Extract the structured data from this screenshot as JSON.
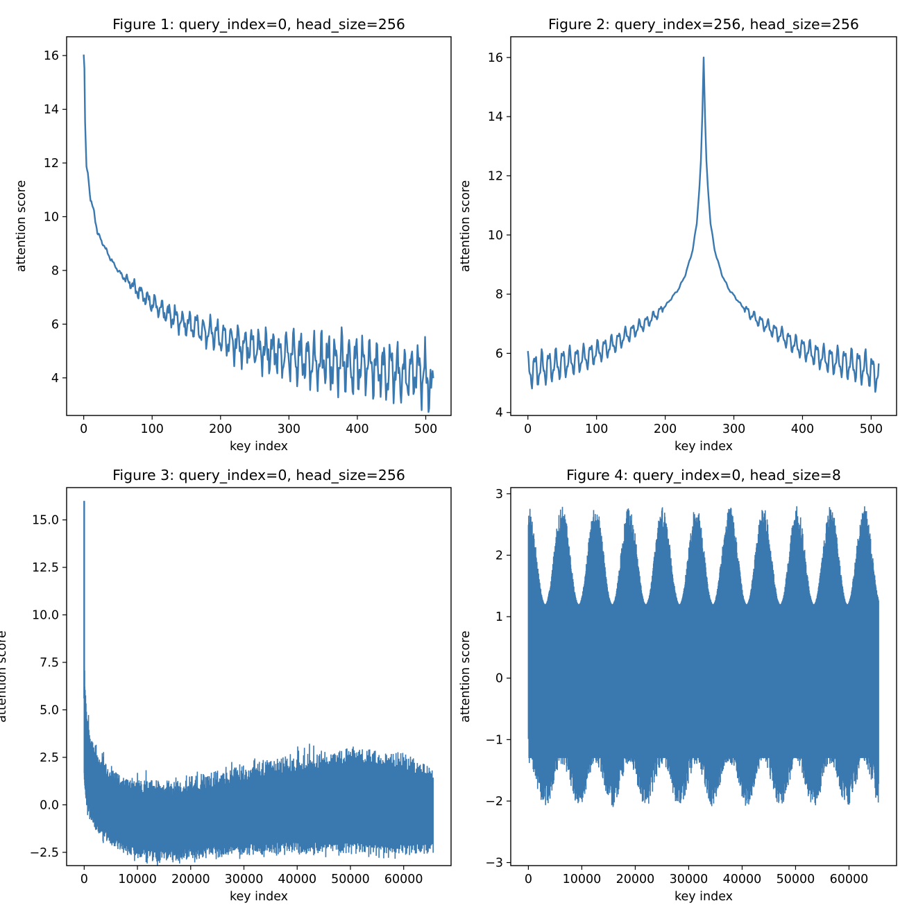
{
  "charts": [
    {
      "title": "Figure 1: query_index=0, head_size=256",
      "xlabel": "key index",
      "ylabel": "attention score",
      "xticks": [
        "0",
        "100",
        "200",
        "300",
        "400",
        "500"
      ],
      "yticks": [
        "4",
        "6",
        "8",
        "10",
        "12",
        "14",
        "16"
      ]
    },
    {
      "title": "Figure 2: query_index=256, head_size=256",
      "xlabel": "key index",
      "ylabel": "attention score",
      "xticks": [
        "0",
        "100",
        "200",
        "300",
        "400",
        "500"
      ],
      "yticks": [
        "4",
        "6",
        "8",
        "10",
        "12",
        "14",
        "16"
      ]
    },
    {
      "title": "Figure 3: query_index=0, head_size=256",
      "xlabel": "key index",
      "ylabel": "attention score",
      "xticks": [
        "0",
        "10000",
        "20000",
        "30000",
        "40000",
        "50000",
        "60000"
      ],
      "yticks": [
        "−2.5",
        "0.0",
        "2.5",
        "5.0",
        "7.5",
        "10.0",
        "12.5",
        "15.0"
      ]
    },
    {
      "title": "Figure 4: query_index=0, head_size=8",
      "xlabel": "key index",
      "ylabel": "attention score",
      "xticks": [
        "0",
        "10000",
        "20000",
        "30000",
        "40000",
        "50000",
        "60000"
      ],
      "yticks": [
        "−3",
        "−2",
        "−1",
        "0",
        "1",
        "2",
        "3"
      ]
    }
  ],
  "chart_data": [
    {
      "type": "line",
      "title": "Figure 1: query_index=0, head_size=256",
      "xlabel": "key index",
      "ylabel": "attention score",
      "xlim": [
        -25,
        537
      ],
      "ylim": [
        2.6,
        16.7
      ],
      "xticks": [
        0,
        100,
        200,
        300,
        400,
        500
      ],
      "yticks": [
        4,
        6,
        8,
        10,
        12,
        14,
        16
      ],
      "color": "#3a78b0",
      "series": [
        {
          "x": [
            0,
            1,
            2,
            4,
            6,
            10,
            15,
            20,
            30,
            40,
            50,
            60,
            70,
            80,
            90,
            100,
            110,
            120,
            130,
            140,
            150,
            160,
            170,
            180,
            190,
            200,
            210,
            220,
            230,
            240,
            250,
            260,
            270,
            280,
            290,
            300,
            310,
            320,
            330,
            340,
            350,
            360,
            370,
            380,
            390,
            400,
            410,
            420,
            430,
            440,
            450,
            460,
            470,
            480,
            490,
            500,
            505,
            511
          ],
          "y": [
            16.0,
            15.5,
            13.5,
            11.8,
            11.7,
            10.6,
            10.2,
            9.4,
            8.9,
            8.4,
            8.0,
            7.7,
            7.5,
            7.2,
            7.0,
            6.8,
            6.6,
            6.4,
            6.3,
            6.1,
            6.0,
            5.9,
            5.8,
            5.7,
            5.6,
            5.5,
            5.4,
            5.3,
            5.25,
            5.2,
            5.1,
            5.0,
            5.0,
            4.95,
            4.9,
            4.85,
            4.8,
            4.75,
            4.7,
            4.65,
            4.6,
            4.6,
            4.55,
            4.5,
            4.5,
            4.45,
            4.4,
            4.4,
            4.35,
            4.3,
            4.3,
            4.25,
            4.2,
            4.2,
            4.15,
            4.1,
            3.7,
            3.45
          ]
        }
      ]
    },
    {
      "type": "line",
      "title": "Figure 2: query_index=256, head_size=256",
      "xlabel": "key index",
      "ylabel": "attention score",
      "xlim": [
        -25,
        537
      ],
      "ylim": [
        3.9,
        16.7
      ],
      "xticks": [
        0,
        100,
        200,
        300,
        400,
        500
      ],
      "yticks": [
        4,
        6,
        8,
        10,
        12,
        14,
        16
      ],
      "color": "#3a78b0",
      "series": [
        {
          "x": [
            0,
            20,
            40,
            60,
            80,
            100,
            120,
            140,
            160,
            180,
            200,
            210,
            220,
            230,
            240,
            246,
            250,
            252,
            254,
            256,
            258,
            260,
            262,
            266,
            272,
            282,
            292,
            302,
            312,
            332,
            352,
            372,
            392,
            412,
            432,
            452,
            472,
            492,
            511
          ],
          "y": [
            5.5,
            5.6,
            5.7,
            5.8,
            5.9,
            6.1,
            6.3,
            6.6,
            6.9,
            7.2,
            7.6,
            7.9,
            8.2,
            8.7,
            9.5,
            10.4,
            11.7,
            12.5,
            14.0,
            16.0,
            14.0,
            12.5,
            11.7,
            10.4,
            9.5,
            8.7,
            8.2,
            7.9,
            7.6,
            7.2,
            6.9,
            6.6,
            6.3,
            6.1,
            5.9,
            5.8,
            5.7,
            5.6,
            5.35
          ]
        }
      ]
    },
    {
      "type": "area",
      "title": "Figure 3: query_index=0, head_size=256",
      "xlabel": "key index",
      "ylabel": "attention score",
      "xlim": [
        -3300,
        68900
      ],
      "ylim": [
        -3.2,
        16.7
      ],
      "xticks": [
        0,
        10000,
        20000,
        30000,
        40000,
        50000,
        60000
      ],
      "yticks": [
        -2.5,
        0.0,
        2.5,
        5.0,
        7.5,
        10.0,
        12.5,
        15.0
      ],
      "color": "#3a78b0",
      "peak": 16.0,
      "upper_envelope": {
        "x": [
          0,
          200,
          500,
          1000,
          2000,
          3000,
          5000,
          7000,
          10000,
          15000,
          20000,
          25000,
          30000,
          35000,
          40000,
          45000,
          50000,
          55000,
          60000,
          65535
        ],
        "y": [
          8.0,
          6.0,
          4.8,
          3.8,
          3.0,
          2.5,
          1.9,
          1.5,
          1.3,
          1.3,
          1.5,
          1.8,
          2.1,
          2.4,
          2.6,
          2.8,
          3.0,
          2.9,
          2.7,
          2.0
        ]
      },
      "lower_envelope": {
        "x": [
          0,
          200,
          500,
          1000,
          2000,
          3000,
          5000,
          7000,
          10000,
          15000,
          20000,
          25000,
          30000,
          35000,
          40000,
          45000,
          50000,
          55000,
          60000,
          65535
        ],
        "y": [
          1.5,
          0.5,
          -0.2,
          -0.6,
          -1.2,
          -1.6,
          -2.1,
          -2.5,
          -2.8,
          -3.0,
          -2.9,
          -2.8,
          -2.7,
          -2.6,
          -2.6,
          -2.6,
          -2.6,
          -2.7,
          -2.7,
          -2.6
        ]
      }
    },
    {
      "type": "area",
      "title": "Figure 4: query_index=0, head_size=8",
      "xlabel": "key index",
      "ylabel": "attention score",
      "xlim": [
        -3300,
        68900
      ],
      "ylim": [
        -3.05,
        3.1
      ],
      "xticks": [
        0,
        10000,
        20000,
        30000,
        40000,
        50000,
        60000
      ],
      "yticks": [
        -3,
        -2,
        -1,
        0,
        1,
        2,
        3
      ],
      "color": "#3a78b0",
      "max": 2.8,
      "min": -2.7,
      "period": 6283,
      "lobes": 10
    }
  ]
}
